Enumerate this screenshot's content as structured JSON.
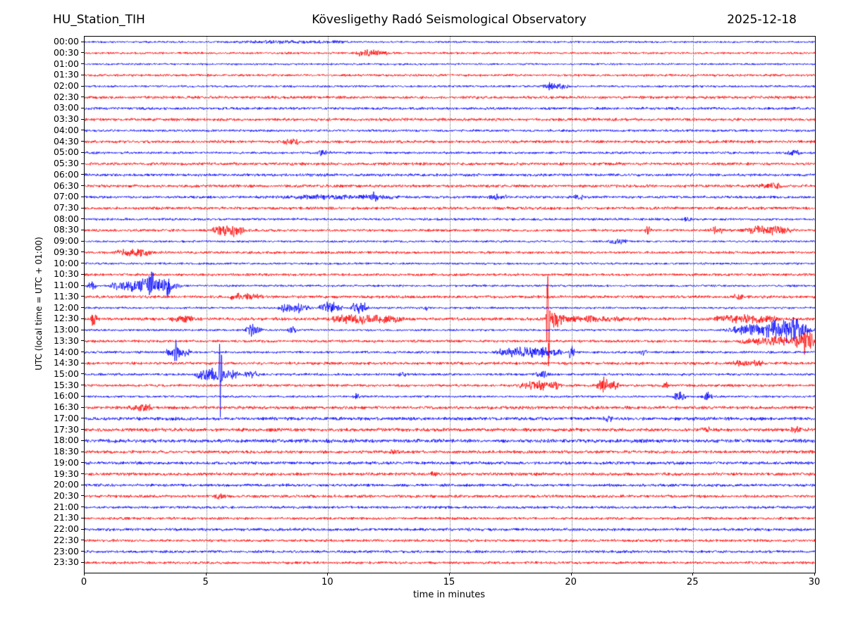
{
  "header": {
    "station": "HU_Station_TIH",
    "observatory": "Kövesligethy Radó Seismological Observatory",
    "date": "2025-12-18"
  },
  "chart_data": {
    "type": "helicorder",
    "title": "HU_Station_TIH — Kövesligethy Radó Seismological Observatory — 2025-12-18",
    "xlabel": "time in minutes",
    "ylabel": "UTC (local time = UTC + 01:00)",
    "xlim": [
      0,
      30
    ],
    "x_ticks": [
      0,
      5,
      10,
      15,
      20,
      25,
      30
    ],
    "grid_minutes": [
      5,
      10,
      15,
      20,
      25
    ],
    "grid_style": "dotted",
    "trace_interval_minutes": 30,
    "colors": {
      "even_trace": "#0000ff",
      "odd_trace": "#ff0000",
      "axis": "#000000",
      "grid": "#777777"
    },
    "rows": [
      {
        "label": "00:00",
        "color": "#0000ff",
        "noise": 0.8,
        "events": [
          {
            "s": 6,
            "e": 11,
            "a": 0.7
          }
        ]
      },
      {
        "label": "00:30",
        "color": "#ff0000",
        "noise": 0.9,
        "events": [
          {
            "s": 10.8,
            "e": 12.6,
            "a": 1.8
          }
        ]
      },
      {
        "label": "01:00",
        "color": "#0000ff",
        "noise": 0.8,
        "events": []
      },
      {
        "label": "01:30",
        "color": "#ff0000",
        "noise": 1.0,
        "events": []
      },
      {
        "label": "02:00",
        "color": "#0000ff",
        "noise": 0.9,
        "events": [
          {
            "s": 18.8,
            "e": 19.9,
            "a": 2.5
          }
        ]
      },
      {
        "label": "02:30",
        "color": "#ff0000",
        "noise": 1.2,
        "events": []
      },
      {
        "label": "03:00",
        "color": "#0000ff",
        "noise": 1.1,
        "events": []
      },
      {
        "label": "03:30",
        "color": "#ff0000",
        "noise": 1.2,
        "events": []
      },
      {
        "label": "04:00",
        "color": "#0000ff",
        "noise": 1.0,
        "events": []
      },
      {
        "label": "04:30",
        "color": "#ff0000",
        "noise": 1.2,
        "events": [
          {
            "s": 8.1,
            "e": 8.9,
            "a": 1.8
          }
        ]
      },
      {
        "label": "05:00",
        "color": "#0000ff",
        "noise": 1.0,
        "events": [
          {
            "s": 9.5,
            "e": 10.1,
            "a": 1.5
          },
          {
            "s": 28.7,
            "e": 29.4,
            "a": 1.8
          }
        ]
      },
      {
        "label": "05:30",
        "color": "#ff0000",
        "noise": 1.2,
        "events": []
      },
      {
        "label": "06:00",
        "color": "#0000ff",
        "noise": 1.2,
        "events": []
      },
      {
        "label": "06:30",
        "color": "#ff0000",
        "noise": 1.2,
        "events": [
          {
            "s": 27.6,
            "e": 28.7,
            "a": 1.5
          }
        ]
      },
      {
        "label": "07:00",
        "color": "#0000ff",
        "noise": 1.1,
        "events": [
          {
            "s": 8,
            "e": 13,
            "a": 1.2
          },
          {
            "s": 11.7,
            "e": 12.1,
            "a": 2.5
          },
          {
            "s": 16.5,
            "e": 17.5,
            "a": 1.5
          },
          {
            "s": 20.1,
            "e": 20.5,
            "a": 2.2
          }
        ]
      },
      {
        "label": "07:30",
        "color": "#ff0000",
        "noise": 1.2,
        "events": []
      },
      {
        "label": "08:00",
        "color": "#0000ff",
        "noise": 1.0,
        "events": [
          {
            "s": 24.5,
            "e": 25.0,
            "a": 1.2
          }
        ]
      },
      {
        "label": "08:30",
        "color": "#ff0000",
        "noise": 1.1,
        "events": [
          {
            "s": 5.2,
            "e": 6.6,
            "a": 4.5
          },
          {
            "s": 23.0,
            "e": 23.3,
            "a": 2.2
          },
          {
            "s": 25.7,
            "e": 26.3,
            "a": 2.2
          },
          {
            "s": 26.9,
            "e": 29.2,
            "a": 2.8
          }
        ]
      },
      {
        "label": "09:00",
        "color": "#0000ff",
        "noise": 0.9,
        "events": [
          {
            "s": 21.4,
            "e": 22.4,
            "a": 1.8
          }
        ]
      },
      {
        "label": "09:30",
        "color": "#ff0000",
        "noise": 1.1,
        "events": [
          {
            "s": 1.2,
            "e": 2.8,
            "a": 2.6
          }
        ]
      },
      {
        "label": "10:00",
        "color": "#0000ff",
        "noise": 0.9,
        "events": []
      },
      {
        "label": "10:30",
        "color": "#ff0000",
        "noise": 1.1,
        "events": []
      },
      {
        "label": "11:00",
        "color": "#0000ff",
        "noise": 0.9,
        "events": [
          {
            "s": 0.1,
            "e": 0.5,
            "a": 2.5
          },
          {
            "s": 1.0,
            "e": 4.0,
            "a": 4.5
          },
          {
            "s": 2.5,
            "e": 2.9,
            "a": 6
          },
          {
            "s": 3.2,
            "e": 3.6,
            "a": 5
          }
        ]
      },
      {
        "label": "11:30",
        "color": "#ff0000",
        "noise": 1.2,
        "events": [
          {
            "s": 5.9,
            "e": 7.4,
            "a": 2.2
          },
          {
            "s": 26.6,
            "e": 27.1,
            "a": 1.8
          }
        ]
      },
      {
        "label": "12:00",
        "color": "#0000ff",
        "noise": 0.9,
        "events": [
          {
            "s": 7.9,
            "e": 9.3,
            "a": 3.2
          },
          {
            "s": 9.6,
            "e": 10.6,
            "a": 4.2
          },
          {
            "s": 10.9,
            "e": 11.7,
            "a": 4.5
          },
          {
            "s": 13.9,
            "e": 14.2,
            "a": 1.8
          }
        ]
      },
      {
        "label": "12:30",
        "color": "#ff0000",
        "noise": 1.3,
        "events": [
          {
            "s": 0.25,
            "e": 0.5,
            "a": 5
          },
          {
            "s": 3.5,
            "e": 4.5,
            "a": 1.8
          },
          {
            "s": 9.9,
            "e": 13.2,
            "a": 2.8
          },
          {
            "s": 18.95,
            "e": 19.12,
            "a": 50
          },
          {
            "s": 19.1,
            "e": 20.6,
            "a": 9,
            "shape": "decay"
          },
          {
            "s": 20.5,
            "e": 23.3,
            "a": 3,
            "shape": "decay"
          },
          {
            "s": 25.8,
            "e": 28.6,
            "a": 2.6
          }
        ]
      },
      {
        "label": "13:00",
        "color": "#0000ff",
        "noise": 0.9,
        "events": [
          {
            "s": 6.6,
            "e": 7.3,
            "a": 4.5
          },
          {
            "s": 8.3,
            "e": 8.7,
            "a": 2.5
          },
          {
            "s": 26.2,
            "e": 30,
            "a": 4.5
          },
          {
            "s": 28.0,
            "e": 29.8,
            "a": 5.5
          }
        ]
      },
      {
        "label": "13:30",
        "color": "#ff0000",
        "noise": 1.1,
        "events": [
          {
            "s": 26.8,
            "e": 30,
            "a": 3
          },
          {
            "s": 29.2,
            "e": 30,
            "a": 7
          }
        ]
      },
      {
        "label": "14:00",
        "color": "#0000ff",
        "noise": 1.0,
        "events": [
          {
            "s": 3.3,
            "e": 4.4,
            "a": 3.5
          },
          {
            "s": 3.6,
            "e": 3.85,
            "a": 5.5
          },
          {
            "s": 16.8,
            "e": 19.7,
            "a": 4.2
          },
          {
            "s": 19.85,
            "e": 20.15,
            "a": 5
          },
          {
            "s": 22.8,
            "e": 23.1,
            "a": 2.2
          }
        ]
      },
      {
        "label": "14:30",
        "color": "#ff0000",
        "noise": 1.2,
        "events": [
          {
            "s": 26.5,
            "e": 28,
            "a": 1.6
          }
        ]
      },
      {
        "label": "15:00",
        "color": "#0000ff",
        "noise": 1.0,
        "events": [
          {
            "s": 4.5,
            "e": 6.4,
            "a": 5
          },
          {
            "s": 5.5,
            "e": 5.65,
            "a": 26
          },
          {
            "s": 6.4,
            "e": 7.2,
            "a": 2
          },
          {
            "s": 12.9,
            "e": 13.2,
            "a": 1.8
          },
          {
            "s": 18.4,
            "e": 19.1,
            "a": 2
          }
        ]
      },
      {
        "label": "15:30",
        "color": "#ff0000",
        "noise": 1.1,
        "events": [
          {
            "s": 17.8,
            "e": 19.7,
            "a": 2.8
          },
          {
            "s": 20.9,
            "e": 22.0,
            "a": 3.5
          },
          {
            "s": 21.25,
            "e": 21.45,
            "a": 8
          },
          {
            "s": 23.7,
            "e": 24.0,
            "a": 1.8
          }
        ]
      },
      {
        "label": "16:00",
        "color": "#0000ff",
        "noise": 0.9,
        "events": [
          {
            "s": 11.0,
            "e": 11.3,
            "a": 2.2
          },
          {
            "s": 24.15,
            "e": 24.7,
            "a": 3.8
          },
          {
            "s": 25.3,
            "e": 25.8,
            "a": 3.2
          }
        ]
      },
      {
        "label": "16:30",
        "color": "#ff0000",
        "noise": 1.3,
        "events": [
          {
            "s": 1.8,
            "e": 2.9,
            "a": 2.2
          }
        ]
      },
      {
        "label": "17:00",
        "color": "#0000ff",
        "noise": 1.4,
        "events": [
          {
            "s": 21.3,
            "e": 21.7,
            "a": 1.8
          }
        ]
      },
      {
        "label": "17:30",
        "color": "#ff0000",
        "noise": 1.4,
        "events": [
          {
            "s": 25.3,
            "e": 25.7,
            "a": 1.8
          },
          {
            "s": 29.0,
            "e": 29.5,
            "a": 1.8
          }
        ]
      },
      {
        "label": "18:00",
        "color": "#0000ff",
        "noise": 1.5,
        "events": []
      },
      {
        "label": "18:30",
        "color": "#ff0000",
        "noise": 1.3,
        "events": [
          {
            "s": 12.5,
            "e": 13.0,
            "a": 1.5
          }
        ]
      },
      {
        "label": "19:00",
        "color": "#0000ff",
        "noise": 1.3,
        "events": []
      },
      {
        "label": "19:30",
        "color": "#ff0000",
        "noise": 1.3,
        "events": [
          {
            "s": 14.2,
            "e": 14.6,
            "a": 1.5
          }
        ]
      },
      {
        "label": "20:00",
        "color": "#0000ff",
        "noise": 1.2,
        "events": []
      },
      {
        "label": "20:30",
        "color": "#ff0000",
        "noise": 1.2,
        "events": [
          {
            "s": 5.3,
            "e": 5.8,
            "a": 1.5
          }
        ]
      },
      {
        "label": "21:00",
        "color": "#0000ff",
        "noise": 1.1,
        "events": []
      },
      {
        "label": "21:30",
        "color": "#ff0000",
        "noise": 1.1,
        "events": []
      },
      {
        "label": "22:00",
        "color": "#0000ff",
        "noise": 1.2,
        "events": []
      },
      {
        "label": "22:30",
        "color": "#ff0000",
        "noise": 1.1,
        "events": []
      },
      {
        "label": "23:00",
        "color": "#0000ff",
        "noise": 1.1,
        "events": []
      },
      {
        "label": "23:30",
        "color": "#ff0000",
        "noise": 1.1,
        "events": []
      }
    ]
  },
  "layout_hints": {
    "first_trace_label": "00:00",
    "last_trace_label": "23:30",
    "traces_count": 48
  }
}
